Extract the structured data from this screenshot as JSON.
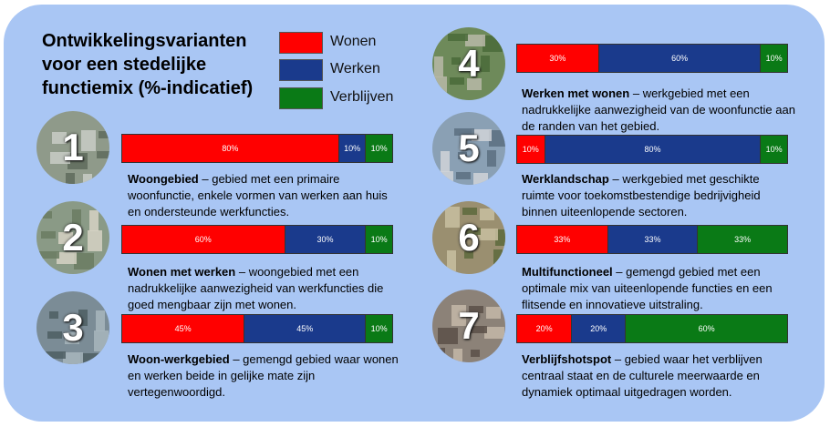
{
  "title": "Ontwikkelingsvarianten voor een stedelijke functiemix (%-indicatief)",
  "legend": [
    {
      "label": "Wonen",
      "color": "#ff0000"
    },
    {
      "label": "Werken",
      "color": "#1a3a8c"
    },
    {
      "label": "Verblijven",
      "color": "#0a7a16"
    }
  ],
  "chart_data": {
    "type": "bar",
    "orientation": "horizontal-stacked-100",
    "series_names": [
      "Wonen",
      "Werken",
      "Verblijven"
    ],
    "categories": [
      "1",
      "2",
      "3",
      "4",
      "5",
      "6",
      "7"
    ],
    "items": [
      {
        "number": "1",
        "name": "Woongebied",
        "text": " – gebied met een primaire woonfunctie, enkele vormen van werken aan huis en ondersteunde werkfuncties.",
        "values": [
          80,
          10,
          10
        ],
        "labels": [
          "80%",
          "10%",
          "10%"
        ]
      },
      {
        "number": "2",
        "name": "Wonen met werken",
        "text": " – woongebied met een nadrukkelijke aanwezigheid van werkfuncties die goed mengbaar zijn met wonen.",
        "values": [
          60,
          30,
          10
        ],
        "labels": [
          "60%",
          "30%",
          "10%"
        ]
      },
      {
        "number": "3",
        "name": "Woon-werkgebied",
        "text": " – gemengd gebied waar wonen en werken beide in gelijke mate zijn vertegenwoordigd.",
        "values": [
          45,
          45,
          10
        ],
        "labels": [
          "45%",
          "45%",
          "10%"
        ]
      },
      {
        "number": "4",
        "name": "Werken met wonen",
        "text": " – werkgebied met een nadrukkelijke aanwezigheid van de woonfunctie aan de randen van het gebied.",
        "values": [
          30,
          60,
          10
        ],
        "labels": [
          "30%",
          "60%",
          "10%"
        ]
      },
      {
        "number": "5",
        "name": "Werklandschap",
        "text": " – werkgebied met geschikte ruimte voor toekomstbestendige bedrijvigheid binnen uiteenlopende sectoren.",
        "values": [
          10,
          80,
          10
        ],
        "labels": [
          "10%",
          "80%",
          "10%"
        ]
      },
      {
        "number": "6",
        "name": "Multifunctioneel",
        "text": " – gemengd gebied met een optimale mix van uiteenlopende functies en een flitsende en innovatieve uitstraling.",
        "values": [
          33,
          33,
          33
        ],
        "labels": [
          "33%",
          "33%",
          "33%"
        ]
      },
      {
        "number": "7",
        "name": "Verblijfshotspot",
        "text": " – gebied waar het verblijven centraal staat en de culturele meerwaarde en dynamiek optimaal uitgedragen worden.",
        "values": [
          20,
          20,
          60
        ],
        "labels": [
          "20%",
          "20%",
          "60%"
        ]
      }
    ]
  }
}
